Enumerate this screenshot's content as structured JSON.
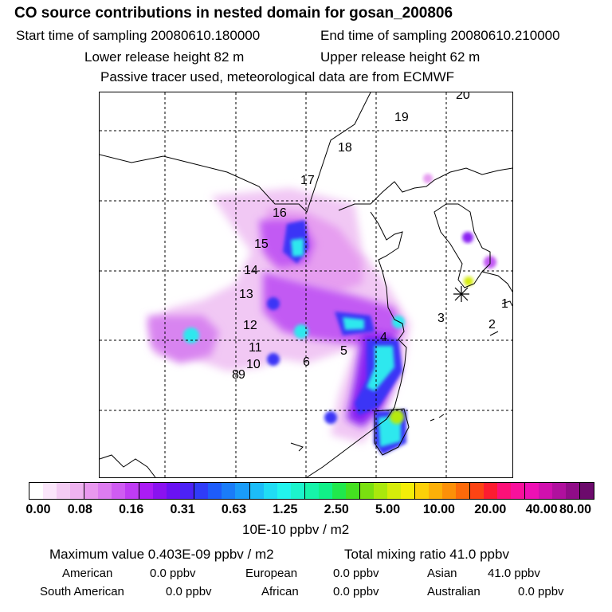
{
  "header": {
    "title": "CO  source contributions in nested domain for gosan_200806",
    "start": "Start time of sampling 20080610.180000",
    "end": "End time of sampling 20080610.210000",
    "lower": "Lower release height   82 m",
    "upper": "Upper release height   62 m",
    "tracer": "Passive tracer used, meteorological data are from ECMWF"
  },
  "map": {
    "trajectory_labels": [
      "1",
      "2",
      "3",
      "4",
      "5",
      "6",
      "8",
      "9",
      "10",
      "11",
      "12",
      "13",
      "14",
      "15",
      "16",
      "17",
      "18",
      "19",
      "20"
    ],
    "release_site_marker": "asterisk"
  },
  "colorbar": {
    "ticks": [
      "0.00",
      "0.08",
      "0.16",
      "0.31",
      "0.63",
      "1.25",
      "2.50",
      "5.00",
      "10.00",
      "20.00",
      "40.00",
      "80.00"
    ],
    "colors": [
      "#ffffff",
      "#fbe6fb",
      "#f4ccf4",
      "#efb3f0",
      "#e998ef",
      "#dd7cf0",
      "#cf5cf2",
      "#bf3cf3",
      "#ab1cf5",
      "#8a12f0",
      "#6a12f2",
      "#4c22f6",
      "#2f3cf8",
      "#1e5cfa",
      "#1a7cf8",
      "#1a9cf8",
      "#1cbcf8",
      "#20dcf4",
      "#22f4ee",
      "#1cf4cc",
      "#16f4aa",
      "#10f088",
      "#20e84c",
      "#44e020",
      "#7ae010",
      "#aae80c",
      "#d6ec0a",
      "#f4ee08",
      "#fcd008",
      "#fcb008",
      "#fc9008",
      "#fc6a0a",
      "#fc4414",
      "#fc1c30",
      "#fc1078",
      "#f8109c",
      "#ee10b4",
      "#d010ae",
      "#b0109e",
      "#900c88",
      "#6c0a6c"
    ],
    "unit": "10E-10 ppbv / m2"
  },
  "stats": {
    "maximum": "Maximum value  0.403E-09 ppbv / m2",
    "total": "Total mixing ratio      41.0 ppbv",
    "american_label": "American",
    "american_value": "0.0 ppbv",
    "european_label": "European",
    "european_value": "0.0 ppbv",
    "asian_label": "Asian",
    "asian_value": "41.0 ppbv",
    "samerican_label": "South American",
    "samerican_value": "0.0 ppbv",
    "african_label": "African",
    "african_value": "0.0 ppbv",
    "australian_label": "Australian",
    "australian_value": "0.0 ppbv"
  }
}
